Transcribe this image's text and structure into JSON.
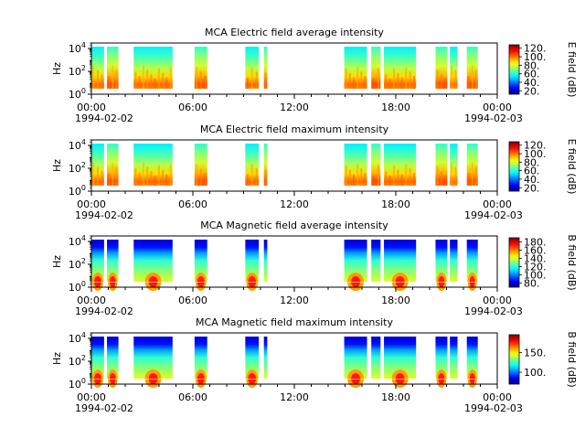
{
  "chart_data": [
    {
      "type": "heatmap",
      "title": "MCA  Electric field average intensity",
      "ylabel": "Hz",
      "yscale": "log",
      "yticks": [
        "10^0",
        "10^2",
        "10^4"
      ],
      "ylim": [
        1,
        30000
      ],
      "xlim": [
        "1994-02-02 00:00",
        "1994-02-03 00:00"
      ],
      "xticks": [
        "00:00",
        "06:00",
        "12:00",
        "18:00",
        "00:00"
      ],
      "date_start": "1994-02-02",
      "date_end": "1994-02-03",
      "colorbar": {
        "label": "E field (dB)",
        "ticks": [
          "20.",
          "40.",
          "60.",
          "80.",
          "100.",
          "120."
        ],
        "range": [
          12,
          128
        ]
      },
      "segments_hours": [
        [
          0.0,
          0.75
        ],
        [
          0.92,
          1.6
        ],
        [
          2.5,
          4.8
        ],
        [
          6.1,
          6.85
        ],
        [
          9.1,
          9.9
        ],
        [
          10.2,
          10.4
        ],
        [
          14.95,
          16.3
        ],
        [
          16.55,
          17.1
        ],
        [
          17.3,
          19.2
        ],
        [
          20.35,
          21.05
        ],
        [
          21.2,
          21.65
        ],
        [
          22.2,
          22.85
        ]
      ],
      "band_scheme": "electric"
    },
    {
      "type": "heatmap",
      "title": "MCA  Electric field maximum intensity",
      "ylabel": "Hz",
      "yscale": "log",
      "yticks": [
        "10^0",
        "10^2",
        "10^4"
      ],
      "ylim": [
        1,
        30000
      ],
      "xlim": [
        "1994-02-02 00:00",
        "1994-02-03 00:00"
      ],
      "xticks": [
        "00:00",
        "06:00",
        "12:00",
        "18:00",
        "00:00"
      ],
      "date_start": "1994-02-02",
      "date_end": "1994-02-03",
      "colorbar": {
        "label": "E field (dB)",
        "ticks": [
          "20.",
          "40.",
          "60.",
          "80.",
          "100.",
          "120."
        ],
        "range": [
          12,
          128
        ]
      },
      "segments_hours": [
        [
          0.0,
          0.75
        ],
        [
          0.92,
          1.6
        ],
        [
          2.5,
          4.8
        ],
        [
          6.1,
          6.85
        ],
        [
          9.1,
          9.9
        ],
        [
          10.2,
          10.4
        ],
        [
          14.95,
          16.3
        ],
        [
          16.55,
          17.1
        ],
        [
          17.3,
          19.2
        ],
        [
          20.35,
          21.05
        ],
        [
          21.2,
          21.65
        ],
        [
          22.2,
          22.85
        ]
      ],
      "band_scheme": "electric"
    },
    {
      "type": "heatmap",
      "title": "MCA  Magnetic field average intensity",
      "ylabel": "Hz",
      "yscale": "log",
      "yticks": [
        "10^0",
        "10^2",
        "10^4"
      ],
      "ylim": [
        1,
        30000
      ],
      "xlim": [
        "1994-02-02 00:00",
        "1994-02-03 00:00"
      ],
      "xticks": [
        "00:00",
        "06:00",
        "12:00",
        "18:00",
        "00:00"
      ],
      "date_start": "1994-02-02",
      "date_end": "1994-02-03",
      "colorbar": {
        "label": "B field (dB)",
        "ticks": [
          "80.",
          "100.",
          "120.",
          "140.",
          "160.",
          "180."
        ],
        "range": [
          70,
          190
        ]
      },
      "segments_hours": [
        [
          0.0,
          0.75
        ],
        [
          0.92,
          1.6
        ],
        [
          2.5,
          4.8
        ],
        [
          6.1,
          6.85
        ],
        [
          9.1,
          9.9
        ],
        [
          10.2,
          10.4
        ],
        [
          14.95,
          16.3
        ],
        [
          16.55,
          17.1
        ],
        [
          17.3,
          19.2
        ],
        [
          20.35,
          21.05
        ],
        [
          21.2,
          21.65
        ],
        [
          22.2,
          22.85
        ]
      ],
      "band_scheme": "magnetic"
    },
    {
      "type": "heatmap",
      "title": "MCA  Magnetic field maximum intensity",
      "ylabel": "Hz",
      "yscale": "log",
      "yticks": [
        "10^0",
        "10^2",
        "10^4"
      ],
      "ylim": [
        1,
        30000
      ],
      "xlim": [
        "1994-02-02 00:00",
        "1994-02-03 00:00"
      ],
      "xticks": [
        "00:00",
        "06:00",
        "12:00",
        "18:00",
        "00:00"
      ],
      "date_start": "1994-02-02",
      "date_end": "1994-02-03",
      "colorbar": {
        "label": "B field (dB)",
        "ticks": [
          "100.",
          "150."
        ],
        "range": [
          70,
          195
        ]
      },
      "segments_hours": [
        [
          0.0,
          0.75
        ],
        [
          0.92,
          1.6
        ],
        [
          2.5,
          4.8
        ],
        [
          6.1,
          6.85
        ],
        [
          9.1,
          9.9
        ],
        [
          10.2,
          10.4
        ],
        [
          14.95,
          16.3
        ],
        [
          16.55,
          17.1
        ],
        [
          17.3,
          19.2
        ],
        [
          20.35,
          21.05
        ],
        [
          21.2,
          21.65
        ],
        [
          22.2,
          22.85
        ]
      ],
      "band_scheme": "magnetic"
    }
  ]
}
